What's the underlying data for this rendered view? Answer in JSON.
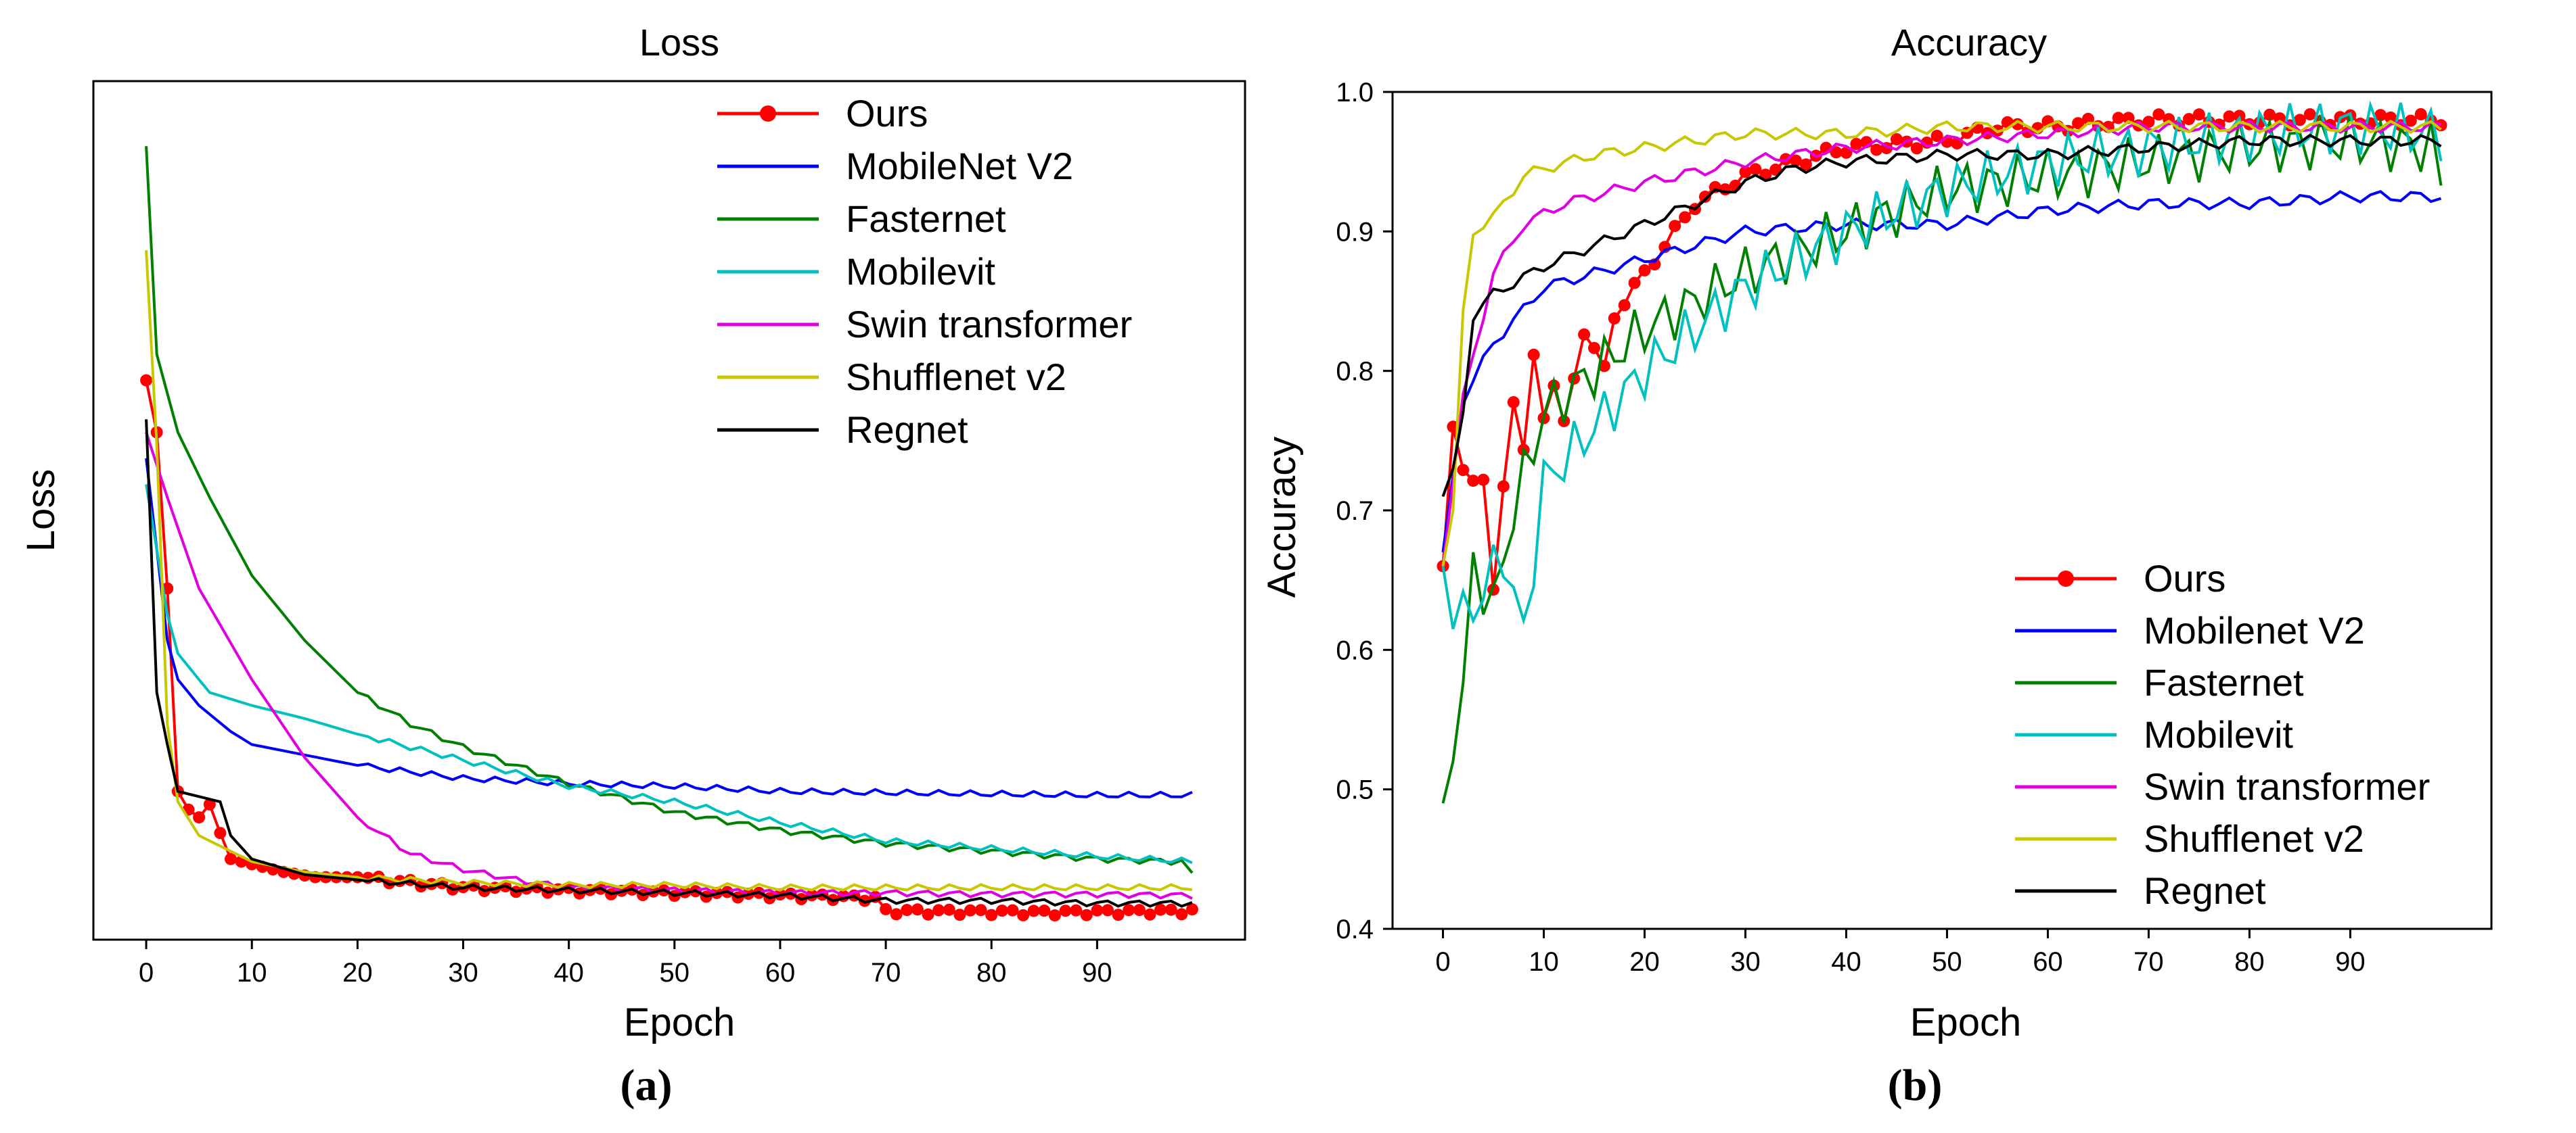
{
  "figure": {
    "caption_a": "(a)",
    "caption_b": "(b)"
  },
  "chart_data": [
    {
      "id": "loss",
      "type": "line",
      "title": "Loss",
      "xlabel": "Epoch",
      "ylabel": "Loss",
      "xlim": [
        -5,
        104
      ],
      "ylim": [
        0.05,
        3.35
      ],
      "xticks": [
        0,
        10,
        20,
        30,
        40,
        50,
        60,
        70,
        80,
        90
      ],
      "yticks": [],
      "legend_position": "top-right",
      "series": [
        {
          "name": "Ours",
          "color": "#ff0000",
          "marker": true,
          "anchors": [
            [
              0,
              2.2
            ],
            [
              1,
              2.0
            ],
            [
              2,
              1.4
            ],
            [
              3,
              0.62
            ],
            [
              4,
              0.55
            ],
            [
              5,
              0.52
            ],
            [
              6,
              0.57
            ],
            [
              7,
              0.46
            ],
            [
              8,
              0.36
            ],
            [
              10,
              0.34
            ],
            [
              13,
              0.31
            ],
            [
              16,
              0.29
            ],
            [
              20,
              0.29
            ],
            [
              30,
              0.25
            ],
            [
              40,
              0.24
            ],
            [
              50,
              0.23
            ],
            [
              60,
              0.22
            ],
            [
              69,
              0.21
            ],
            [
              70,
              0.16
            ],
            [
              85,
              0.155
            ],
            [
              99,
              0.16
            ]
          ]
        },
        {
          "name": "MobileNet V2",
          "color": "#0000ff",
          "anchors": [
            [
              0,
              1.9
            ],
            [
              2,
              1.2
            ],
            [
              3,
              1.05
            ],
            [
              5,
              0.95
            ],
            [
              8,
              0.85
            ],
            [
              10,
              0.8
            ],
            [
              15,
              0.76
            ],
            [
              20,
              0.72
            ],
            [
              30,
              0.67
            ],
            [
              40,
              0.65
            ],
            [
              50,
              0.64
            ],
            [
              60,
              0.62
            ],
            [
              70,
              0.615
            ],
            [
              80,
              0.61
            ],
            [
              90,
              0.605
            ],
            [
              99,
              0.605
            ]
          ]
        },
        {
          "name": "Fasternet",
          "color": "#008000",
          "anchors": [
            [
              0,
              3.1
            ],
            [
              1,
              2.3
            ],
            [
              3,
              2.0
            ],
            [
              6,
              1.75
            ],
            [
              10,
              1.45
            ],
            [
              15,
              1.2
            ],
            [
              20,
              1.0
            ],
            [
              25,
              0.88
            ],
            [
              30,
              0.79
            ],
            [
              40,
              0.65
            ],
            [
              50,
              0.54
            ],
            [
              60,
              0.47
            ],
            [
              70,
              0.42
            ],
            [
              80,
              0.39
            ],
            [
              90,
              0.36
            ],
            [
              98,
              0.35
            ],
            [
              99,
              0.3
            ]
          ]
        },
        {
          "name": "Mobilevit",
          "color": "#00c0c0",
          "anchors": [
            [
              0,
              1.8
            ],
            [
              2,
              1.3
            ],
            [
              3,
              1.15
            ],
            [
              6,
              1.0
            ],
            [
              10,
              0.95
            ],
            [
              15,
              0.9
            ],
            [
              20,
              0.84
            ],
            [
              30,
              0.74
            ],
            [
              40,
              0.64
            ],
            [
              50,
              0.58
            ],
            [
              60,
              0.5
            ],
            [
              70,
              0.43
            ],
            [
              80,
              0.4
            ],
            [
              90,
              0.37
            ],
            [
              99,
              0.35
            ]
          ]
        },
        {
          "name": "Swin transformer",
          "color": "#e000e0",
          "anchors": [
            [
              0,
              2.0
            ],
            [
              2,
              1.75
            ],
            [
              5,
              1.4
            ],
            [
              10,
              1.05
            ],
            [
              15,
              0.75
            ],
            [
              20,
              0.52
            ],
            [
              25,
              0.38
            ],
            [
              30,
              0.32
            ],
            [
              35,
              0.28
            ],
            [
              40,
              0.25
            ],
            [
              50,
              0.24
            ],
            [
              60,
              0.23
            ],
            [
              70,
              0.23
            ],
            [
              80,
              0.225
            ],
            [
              90,
              0.225
            ],
            [
              99,
              0.22
            ]
          ]
        },
        {
          "name": "Shufflenet v2",
          "color": "#c8c800",
          "anchors": [
            [
              0,
              2.7
            ],
            [
              1,
              1.95
            ],
            [
              2,
              0.88
            ],
            [
              3,
              0.58
            ],
            [
              5,
              0.45
            ],
            [
              8,
              0.39
            ],
            [
              10,
              0.35
            ],
            [
              15,
              0.31
            ],
            [
              20,
              0.29
            ],
            [
              30,
              0.27
            ],
            [
              40,
              0.26
            ],
            [
              50,
              0.26
            ],
            [
              60,
              0.25
            ],
            [
              70,
              0.25
            ],
            [
              80,
              0.25
            ],
            [
              90,
              0.25
            ],
            [
              99,
              0.25
            ]
          ]
        },
        {
          "name": "Regnet",
          "color": "#000000",
          "anchors": [
            [
              0,
              2.05
            ],
            [
              1,
              1.0
            ],
            [
              2,
              0.8
            ],
            [
              3,
              0.62
            ],
            [
              5,
              0.6
            ],
            [
              7,
              0.58
            ],
            [
              8,
              0.45
            ],
            [
              10,
              0.36
            ],
            [
              15,
              0.3
            ],
            [
              20,
              0.28
            ],
            [
              30,
              0.25
            ],
            [
              40,
              0.24
            ],
            [
              50,
              0.23
            ],
            [
              60,
              0.22
            ],
            [
              70,
              0.2
            ],
            [
              80,
              0.2
            ],
            [
              90,
              0.19
            ],
            [
              99,
              0.19
            ]
          ]
        }
      ]
    },
    {
      "id": "accuracy",
      "type": "line",
      "title": "Accuracy",
      "xlabel": "Epoch",
      "ylabel": "Accuracy",
      "xlim": [
        -5,
        104
      ],
      "ylim": [
        0.4,
        1.0
      ],
      "xticks": [
        0,
        10,
        20,
        30,
        40,
        50,
        60,
        70,
        80,
        90
      ],
      "yticks": [
        0.4,
        0.5,
        0.6,
        0.7,
        0.8,
        0.9,
        1.0
      ],
      "legend_position": "bottom-right",
      "series": [
        {
          "name": "Ours",
          "color": "#ff0000",
          "marker": true,
          "anchors": [
            [
              0,
              0.66
            ],
            [
              1,
              0.76
            ],
            [
              2,
              0.73
            ],
            [
              4,
              0.72
            ],
            [
              5,
              0.64
            ],
            [
              6,
              0.72
            ],
            [
              7,
              0.78
            ],
            [
              8,
              0.74
            ],
            [
              9,
              0.81
            ],
            [
              10,
              0.77
            ],
            [
              11,
              0.79
            ],
            [
              12,
              0.76
            ],
            [
              14,
              0.83
            ],
            [
              16,
              0.8
            ],
            [
              17,
              0.84
            ],
            [
              20,
              0.87
            ],
            [
              25,
              0.92
            ],
            [
              30,
              0.94
            ],
            [
              35,
              0.95
            ],
            [
              40,
              0.96
            ],
            [
              50,
              0.965
            ],
            [
              55,
              0.975
            ],
            [
              60,
              0.975
            ],
            [
              70,
              0.98
            ],
            [
              80,
              0.98
            ],
            [
              90,
              0.98
            ],
            [
              99,
              0.98
            ]
          ]
        },
        {
          "name": "Mobilenet V2",
          "color": "#0000ff",
          "anchors": [
            [
              0,
              0.67
            ],
            [
              2,
              0.78
            ],
            [
              5,
              0.82
            ],
            [
              10,
              0.86
            ],
            [
              20,
              0.88
            ],
            [
              30,
              0.9
            ],
            [
              40,
              0.905
            ],
            [
              50,
              0.905
            ],
            [
              60,
              0.915
            ],
            [
              70,
              0.92
            ],
            [
              80,
              0.92
            ],
            [
              90,
              0.925
            ],
            [
              99,
              0.925
            ]
          ]
        },
        {
          "name": "Fasternet",
          "color": "#008000",
          "anchors": [
            [
              0,
              0.49
            ],
            [
              1,
              0.52
            ],
            [
              2,
              0.57
            ],
            [
              3,
              0.66
            ],
            [
              5,
              0.63
            ],
            [
              7,
              0.7
            ],
            [
              10,
              0.77
            ],
            [
              15,
              0.8
            ],
            [
              20,
              0.83
            ],
            [
              30,
              0.87
            ],
            [
              40,
              0.9
            ],
            [
              50,
              0.93
            ],
            [
              60,
              0.94
            ],
            [
              70,
              0.95
            ],
            [
              80,
              0.96
            ],
            [
              90,
              0.965
            ],
            [
              98,
              0.96
            ],
            [
              99,
              0.94
            ]
          ]
        },
        {
          "name": "Mobilevit",
          "color": "#00c0c0",
          "anchors": [
            [
              0,
              0.66
            ],
            [
              1,
              0.615
            ],
            [
              3,
              0.63
            ],
            [
              6,
              0.67
            ],
            [
              8,
              0.61
            ],
            [
              10,
              0.72
            ],
            [
              15,
              0.76
            ],
            [
              20,
              0.8
            ],
            [
              25,
              0.83
            ],
            [
              30,
              0.86
            ],
            [
              35,
              0.88
            ],
            [
              40,
              0.9
            ],
            [
              50,
              0.93
            ],
            [
              60,
              0.95
            ],
            [
              70,
              0.96
            ],
            [
              80,
              0.97
            ],
            [
              90,
              0.975
            ],
            [
              99,
              0.97
            ]
          ]
        },
        {
          "name": "Swin transformer",
          "color": "#e000e0",
          "anchors": [
            [
              0,
              0.66
            ],
            [
              2,
              0.78
            ],
            [
              5,
              0.87
            ],
            [
              8,
              0.905
            ],
            [
              12,
              0.92
            ],
            [
              20,
              0.935
            ],
            [
              30,
              0.95
            ],
            [
              40,
              0.96
            ],
            [
              50,
              0.965
            ],
            [
              60,
              0.97
            ],
            [
              70,
              0.975
            ],
            [
              80,
              0.975
            ],
            [
              90,
              0.975
            ],
            [
              99,
              0.975
            ]
          ]
        },
        {
          "name": "Shufflenet v2",
          "color": "#c8c800",
          "anchors": [
            [
              0,
              0.66
            ],
            [
              1,
              0.7
            ],
            [
              2,
              0.84
            ],
            [
              3,
              0.9
            ],
            [
              5,
              0.91
            ],
            [
              8,
              0.94
            ],
            [
              10,
              0.945
            ],
            [
              15,
              0.955
            ],
            [
              20,
              0.96
            ],
            [
              30,
              0.97
            ],
            [
              40,
              0.97
            ],
            [
              50,
              0.975
            ],
            [
              60,
              0.975
            ],
            [
              70,
              0.975
            ],
            [
              80,
              0.975
            ],
            [
              90,
              0.975
            ],
            [
              99,
              0.975
            ]
          ]
        },
        {
          "name": "Regnet",
          "color": "#000000",
          "anchors": [
            [
              0,
              0.71
            ],
            [
              1,
              0.73
            ],
            [
              2,
              0.77
            ],
            [
              3,
              0.84
            ],
            [
              5,
              0.855
            ],
            [
              10,
              0.875
            ],
            [
              15,
              0.89
            ],
            [
              20,
              0.905
            ],
            [
              25,
              0.92
            ],
            [
              30,
              0.935
            ],
            [
              35,
              0.945
            ],
            [
              40,
              0.95
            ],
            [
              50,
              0.955
            ],
            [
              60,
              0.955
            ],
            [
              70,
              0.96
            ],
            [
              80,
              0.965
            ],
            [
              90,
              0.965
            ],
            [
              99,
              0.965
            ]
          ]
        }
      ]
    }
  ]
}
